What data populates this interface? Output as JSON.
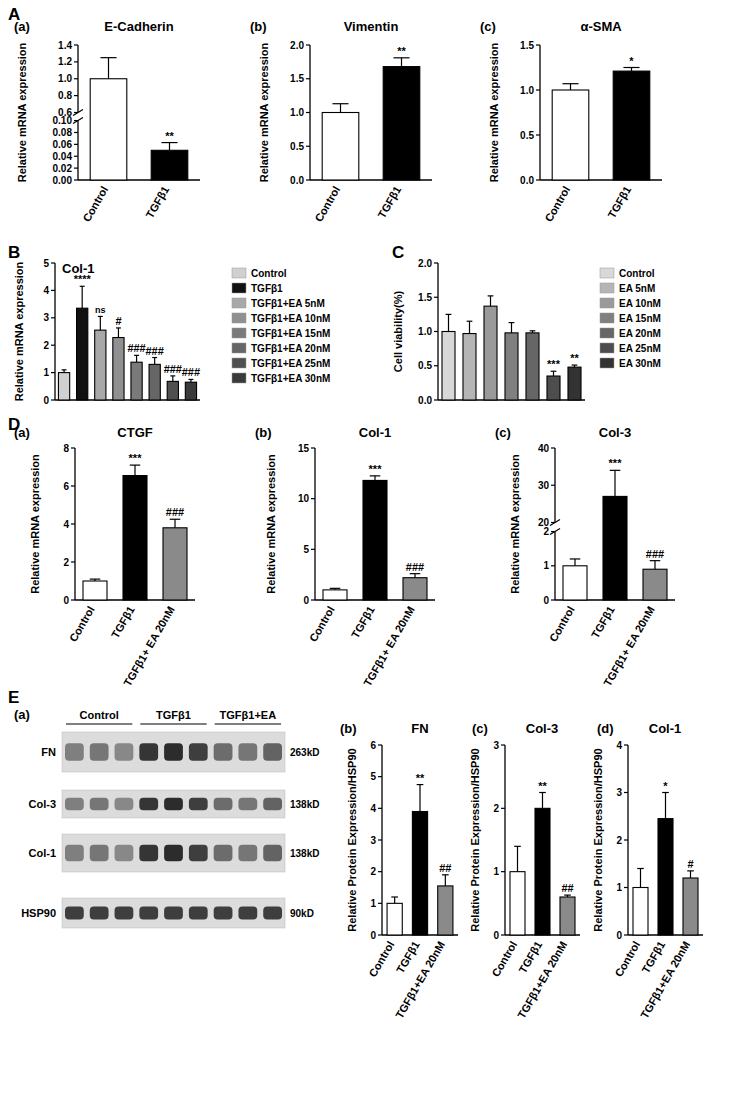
{
  "chart_data": [
    {
      "type": "bar",
      "label": "(a)",
      "title": "E-Cadherin",
      "y_label": "Relative mRNA expression",
      "categories": [
        "Control",
        "TGFβ1"
      ],
      "values": [
        1.0,
        0.05
      ],
      "errors": [
        0.25,
        0.013
      ],
      "colors": [
        "#ffffff",
        "#000000"
      ],
      "annotations": [
        null,
        "**"
      ],
      "ylim": [
        0,
        1.4
      ],
      "y_break": [
        0.1,
        0.6
      ],
      "yticks": [
        {
          "value": 0,
          "label": "0.00"
        },
        0.02,
        0.04,
        0.06,
        0.08,
        {
          "value": 0.1,
          "label": "0.10"
        },
        0.6,
        0.8,
        {
          "value": 1,
          "label": "1.0"
        },
        1.2,
        1.4
      ]
    },
    {
      "type": "bar",
      "label": "(b)",
      "title": "Vimentin",
      "y_label": "Relative mRNA expression",
      "categories": [
        "Control",
        "TGFβ1"
      ],
      "values": [
        1.0,
        1.68
      ],
      "errors": [
        0.13,
        0.13
      ],
      "colors": [
        "#ffffff",
        "#000000"
      ],
      "annotations": [
        null,
        "**"
      ],
      "ylim": [
        0,
        2
      ],
      "yticks": [
        {
          "value": 0,
          "label": "0.0"
        },
        0.5,
        {
          "value": 1,
          "label": "1.0"
        },
        1.5,
        {
          "value": 2,
          "label": "2.0"
        }
      ]
    },
    {
      "type": "bar",
      "label": "(c)",
      "title": "α-SMA",
      "y_label": "Relative mRNA expression",
      "categories": [
        "Control",
        "TGFβ1"
      ],
      "values": [
        1.0,
        1.21
      ],
      "errors": [
        0.07,
        0.04
      ],
      "colors": [
        "#ffffff",
        "#000000"
      ],
      "annotations": [
        null,
        "*"
      ],
      "ylim": [
        0,
        1.5
      ],
      "yticks": [
        {
          "value": 0,
          "label": "0.0"
        },
        0.5,
        {
          "value": 1,
          "label": "1.0"
        },
        1.5
      ]
    },
    {
      "type": "bar",
      "title": "Col-1",
      "y_label": "Relative mRNA expression",
      "categories": [
        "Control",
        "TGFβ1",
        "TGFβ1+EA 5nM",
        "TGFβ1+EA 10nM",
        "TGFβ1+EA 15nM",
        "TGFβ1+EA 20nM",
        "TGFβ1+EA 25nM",
        "TGFβ1+EA 30nM"
      ],
      "values": [
        1.0,
        3.35,
        2.55,
        2.28,
        1.38,
        1.3,
        0.68,
        0.65
      ],
      "errors": [
        0.1,
        0.8,
        0.5,
        0.35,
        0.25,
        0.25,
        0.2,
        0.1
      ],
      "colors": [
        "#d0d0d0",
        "#111111",
        "#a8a8a8",
        "#909090",
        "#7a7a7a",
        "#666666",
        "#505050",
        "#3a3a3a"
      ],
      "annotations": [
        null,
        "****",
        "ns",
        "#",
        "###",
        "###",
        "###",
        "###"
      ],
      "ylim": [
        0,
        5
      ],
      "yticks": [
        0,
        1,
        2,
        3,
        4,
        5
      ],
      "legend": "right",
      "tick_labels": "y"
    },
    {
      "type": "bar",
      "y_label": "Cell viability(%)",
      "categories": [
        "Control",
        "EA 5nM",
        "EA 10nM",
        "EA 15nM",
        "EA 20nM",
        "EA 25nM",
        "EA 30nM"
      ],
      "values": [
        1.0,
        0.97,
        1.37,
        0.98,
        0.98,
        0.35,
        0.48
      ],
      "errors": [
        0.25,
        0.18,
        0.15,
        0.15,
        0.03,
        0.07,
        0.03
      ],
      "colors": [
        "#d8d8d8",
        "#b5b5b5",
        "#9a9a9a",
        "#808080",
        "#666666",
        "#4d4d4d",
        "#333333"
      ],
      "annotations": [
        null,
        null,
        null,
        null,
        null,
        "***",
        "**"
      ],
      "ylim": [
        0,
        2
      ],
      "yticks": [
        {
          "value": 0,
          "label": "0.0"
        },
        0.5,
        {
          "value": 1,
          "label": "1.0"
        },
        1.5,
        {
          "value": 2,
          "label": "2.0"
        }
      ],
      "legend": "right",
      "tick_labels": "y"
    },
    {
      "type": "bar",
      "label": "(a)",
      "title": "CTGF",
      "y_label": "Relative mRNA expression",
      "categories": [
        "Control",
        "TGFβ1",
        "TGFβ1+ EA 20nM"
      ],
      "values": [
        1.0,
        6.55,
        3.8
      ],
      "errors": [
        0.1,
        0.55,
        0.45
      ],
      "colors": [
        "#ffffff",
        "#000000",
        "#8a8a8a"
      ],
      "annotations": [
        null,
        "***",
        "###"
      ],
      "ylim": [
        0,
        8
      ],
      "yticks": [
        0,
        2,
        4,
        6,
        8
      ]
    },
    {
      "type": "bar",
      "label": "(b)",
      "title": "Col-1",
      "y_label": "Relative mRNA expression",
      "categories": [
        "Control",
        "TGFβ1",
        "TGFβ1+ EA 20nM"
      ],
      "values": [
        1.0,
        11.8,
        2.2
      ],
      "errors": [
        0.15,
        0.45,
        0.4
      ],
      "colors": [
        "#ffffff",
        "#000000",
        "#8a8a8a"
      ],
      "annotations": [
        null,
        "***",
        "###"
      ],
      "ylim": [
        0,
        15
      ],
      "yticks": [
        0,
        5,
        10,
        15
      ]
    },
    {
      "type": "bar",
      "label": "(c)",
      "title": "Col-3",
      "y_label": "Relative mRNA expression",
      "categories": [
        "Control",
        "TGFβ1",
        "TGFβ1+ EA 20nM"
      ],
      "values": [
        1.0,
        27,
        0.9
      ],
      "errors": [
        0.2,
        7,
        0.25
      ],
      "colors": [
        "#ffffff",
        "#000000",
        "#8a8a8a"
      ],
      "annotations": [
        null,
        "***",
        "###"
      ],
      "ylim": [
        0,
        40
      ],
      "y_break": [
        2,
        20
      ],
      "yticks": [
        0,
        1,
        2,
        20,
        30,
        40
      ]
    },
    {
      "type": "bar",
      "label": "(b)",
      "title": "FN",
      "y_label": "Relative Protein Expression/HSP90",
      "categories": [
        "Control",
        "TGFβ1",
        "TGFβ1+EA 20nM"
      ],
      "values": [
        1.0,
        3.9,
        1.55
      ],
      "errors": [
        0.2,
        0.85,
        0.35
      ],
      "colors": [
        "#ffffff",
        "#000000",
        "#8a8a8a"
      ],
      "annotations": [
        null,
        "**",
        "##"
      ],
      "ylim": [
        0,
        6
      ],
      "yticks": [
        0,
        1,
        2,
        3,
        4,
        5,
        6
      ]
    },
    {
      "type": "bar",
      "label": "(c)",
      "title": "Col-3",
      "y_label": "Relative Protein Expression/HSP90",
      "categories": [
        "Control",
        "TGFβ1",
        "TGFβ1+EA 20nM"
      ],
      "values": [
        1.0,
        2.0,
        0.6
      ],
      "errors": [
        0.4,
        0.25,
        0.03
      ],
      "colors": [
        "#ffffff",
        "#000000",
        "#8a8a8a"
      ],
      "annotations": [
        null,
        "**",
        "##"
      ],
      "ylim": [
        0,
        3
      ],
      "yticks": [
        0,
        1,
        2,
        3
      ]
    },
    {
      "type": "bar",
      "label": "(d)",
      "title": "Col-1",
      "y_label": "Relative Protein Expression/HSP90",
      "categories": [
        "Control",
        "TGFβ1",
        "TGFβ1+EA 20nM"
      ],
      "values": [
        1.0,
        2.45,
        1.2
      ],
      "errors": [
        0.4,
        0.55,
        0.15
      ],
      "colors": [
        "#ffffff",
        "#000000",
        "#8a8a8a"
      ],
      "annotations": [
        null,
        "*",
        "#"
      ],
      "ylim": [
        0,
        4
      ],
      "yticks": [
        0,
        1,
        2,
        3,
        4
      ]
    }
  ],
  "figure": {
    "panels": [
      "A",
      "B",
      "C",
      "D",
      "E"
    ],
    "blot": {
      "label": "(a)",
      "groups": [
        "Control",
        "TGFβ1",
        "TGFβ1+EA"
      ],
      "rows": [
        {
          "name": "FN",
          "size": "263kD"
        },
        {
          "name": "Col-3",
          "size": "138kD"
        },
        {
          "name": "Col-1",
          "size": "138kD"
        },
        {
          "name": "HSP90",
          "size": "90kD"
        }
      ]
    }
  }
}
